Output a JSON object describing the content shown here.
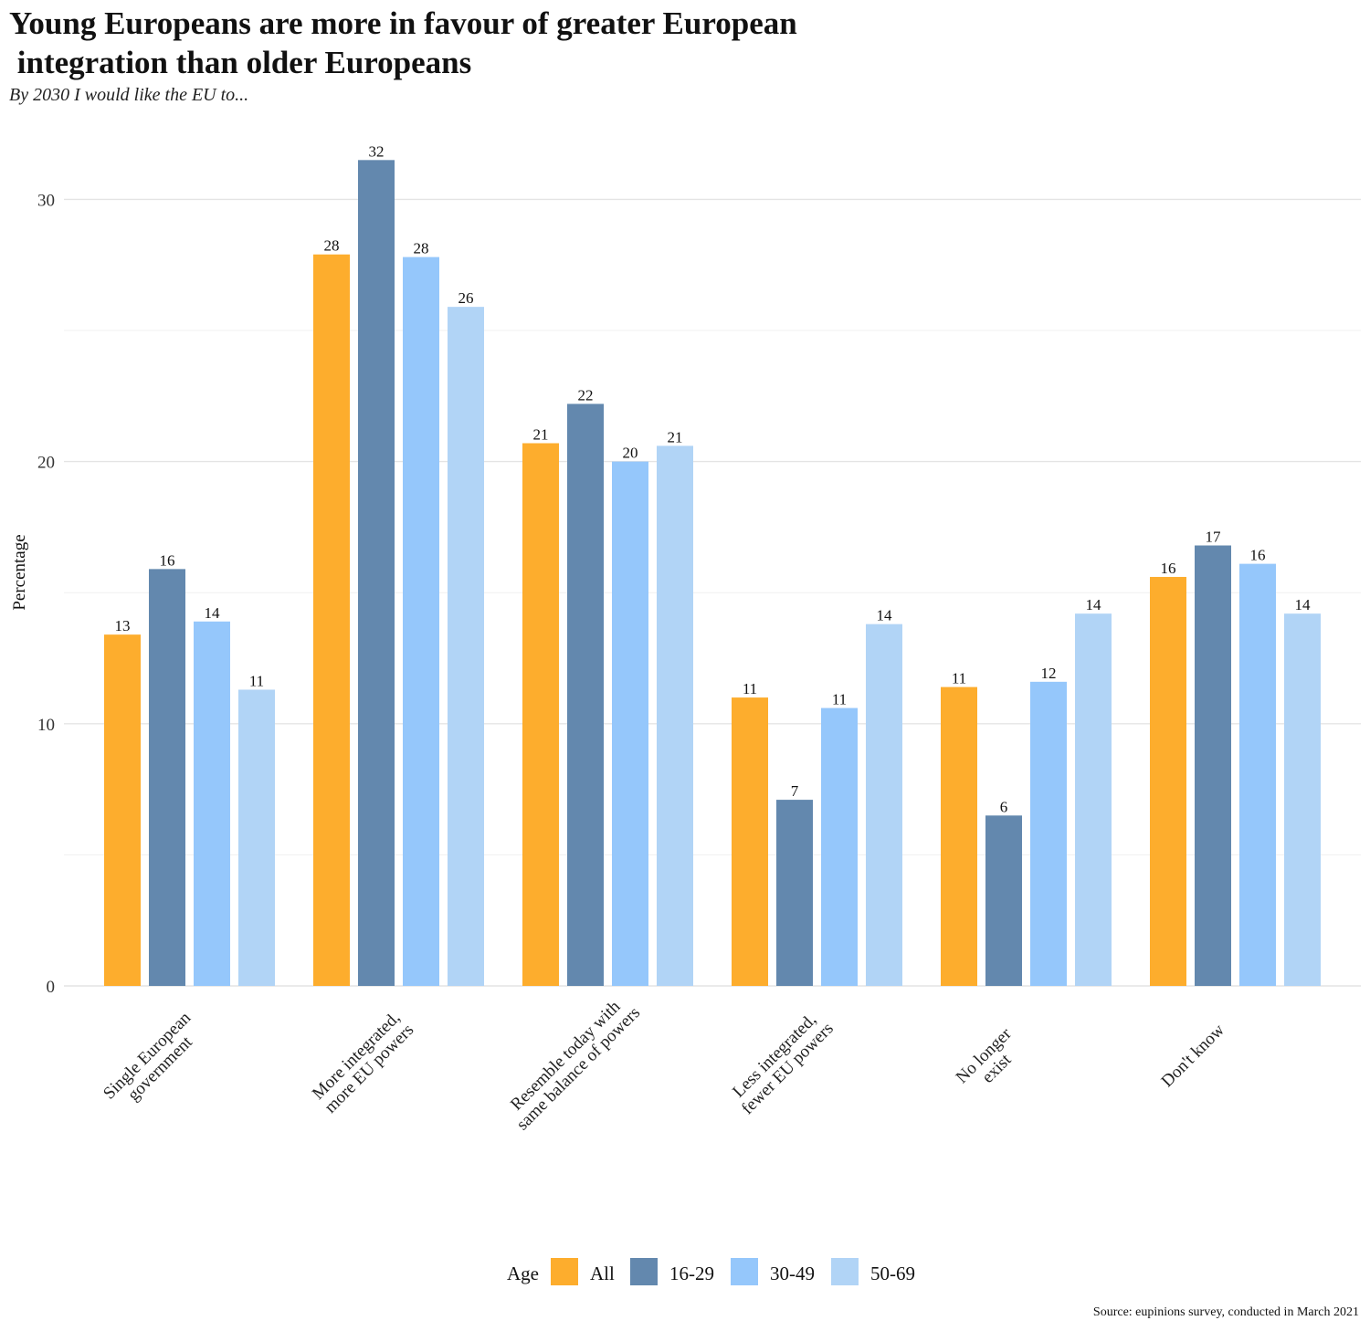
{
  "title": "Young Europeans are more in favour of greater European\n integration than older Europeans",
  "subtitle": "By 2030 I would like the EU to...",
  "source": "Source: eupinions survey, conducted in March 2021",
  "chart_data": {
    "type": "bar",
    "categories": [
      [
        "Single European",
        "government"
      ],
      [
        "More integrated,",
        "more EU powers"
      ],
      [
        "Resemble today with",
        "same balance of powers"
      ],
      [
        "Less integrated,",
        "fewer EU powers"
      ],
      [
        "No longer",
        "exist"
      ],
      [
        "Don't know"
      ]
    ],
    "ylabel": "Percentage",
    "ylim": [
      0,
      31.5
    ],
    "yticks": [
      0,
      10,
      20,
      30
    ],
    "grid": true,
    "legend": {
      "title": "Age",
      "position": "bottom"
    },
    "series": [
      {
        "name": "All",
        "color": "#FDAD2D",
        "values": [
          13.4,
          27.9,
          20.7,
          11.0,
          11.4,
          15.6
        ],
        "labels": [
          "13",
          "28",
          "21",
          "11",
          "11",
          "16"
        ]
      },
      {
        "name": "16-29",
        "color": "#6388AE",
        "values": [
          15.9,
          31.5,
          22.2,
          7.1,
          6.5,
          16.8
        ],
        "labels": [
          "16",
          "32",
          "22",
          "7",
          "6",
          "17"
        ]
      },
      {
        "name": "30-49",
        "color": "#95C7FB",
        "values": [
          13.9,
          27.8,
          20.0,
          10.6,
          11.6,
          16.1
        ],
        "labels": [
          "14",
          "28",
          "20",
          "11",
          "12",
          "16"
        ]
      },
      {
        "name": "50-69",
        "color": "#B1D4F6",
        "values": [
          11.3,
          25.9,
          20.6,
          13.8,
          14.2,
          14.2
        ],
        "labels": [
          "11",
          "26",
          "21",
          "14",
          "14",
          "14"
        ]
      }
    ]
  }
}
